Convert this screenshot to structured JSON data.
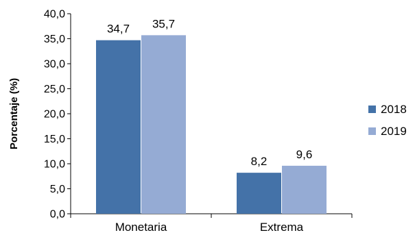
{
  "chart_data": {
    "type": "bar",
    "ylabel": "Porcentaje (%)",
    "xlabel": "",
    "categories": [
      "Monetaria",
      "Extrema"
    ],
    "series": [
      {
        "name": "2018",
        "values": [
          34.7,
          8.2
        ],
        "labels": [
          "34,7",
          "8,2"
        ],
        "color": "#4472A8"
      },
      {
        "name": "2019",
        "values": [
          35.7,
          9.6
        ],
        "labels": [
          "35,7",
          "9,6"
        ],
        "color": "#95ABD4"
      }
    ],
    "ylim": [
      0,
      40
    ],
    "yticks": [
      0,
      5,
      10,
      15,
      20,
      25,
      30,
      35,
      40
    ],
    "ytick_labels": [
      "0,0",
      "5,0",
      "10,0",
      "15,0",
      "20,0",
      "25,0",
      "30,0",
      "35,0",
      "40,0"
    ],
    "grid": false,
    "legend_position": "right"
  }
}
